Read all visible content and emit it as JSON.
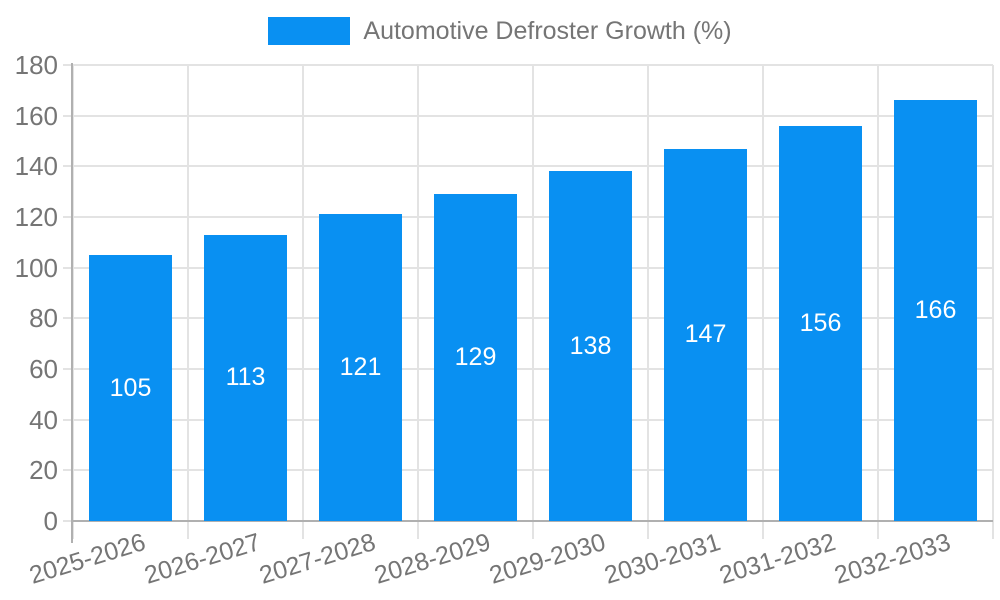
{
  "page": {
    "background": "#ffffff"
  },
  "legend": {
    "label": "Automotive Defroster Growth (%)",
    "swatch_color": "#0990f2"
  },
  "chart_data": {
    "type": "bar",
    "title": "Automotive Defroster Growth (%)",
    "categories": [
      "2025-2026",
      "2026-2027",
      "2027-2028",
      "2028-2029",
      "2029-2030",
      "2030-2031",
      "2031-2032",
      "2032-2033"
    ],
    "values": [
      105,
      113,
      121,
      129,
      138,
      147,
      156,
      166
    ],
    "xlabel": "",
    "ylabel": "",
    "ylim": [
      0,
      180
    ],
    "ytick_step": 20,
    "yticks": [
      "0",
      "20",
      "40",
      "60",
      "80",
      "100",
      "120",
      "140",
      "160",
      "180"
    ],
    "grid": true,
    "legend_position": "top",
    "bar_color": "#0990f2",
    "value_label_color": "#ffffff",
    "axis_text_color": "#757575",
    "grid_color": "#e3e3e3",
    "axis_line_color": "#b0b0b0"
  }
}
